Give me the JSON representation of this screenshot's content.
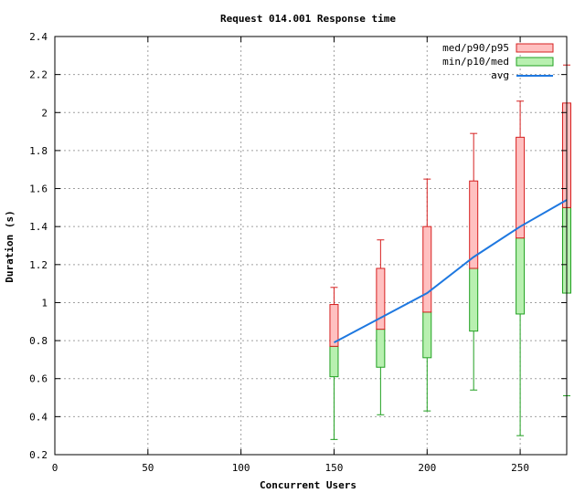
{
  "chart_data": {
    "type": "boxplot",
    "title": "Request 014.001 Response time",
    "xlabel": "Concurrent Users",
    "ylabel": "Duration (s)",
    "xlim": [
      0,
      275
    ],
    "ylim": [
      0.2,
      2.4
    ],
    "xticks": [
      0,
      50,
      100,
      150,
      200,
      250
    ],
    "xtick_labels": [
      "0",
      "50",
      "100",
      "150",
      "200",
      "250"
    ],
    "yticks": [
      0.2,
      0.4,
      0.6,
      0.8,
      1,
      1.2,
      1.4,
      1.6,
      1.8,
      2,
      2.2,
      2.4
    ],
    "ytick_labels": [
      "0.2",
      "0.4",
      "0.6",
      "0.8",
      "1",
      "1.2",
      "1.4",
      "1.6",
      "1.8",
      "2",
      "2.2",
      "2.4"
    ],
    "grid": true,
    "legend_position": "top-right",
    "legend": [
      {
        "name": "med/p90/p95",
        "kind": "box",
        "fill": "#ffc0c0",
        "stroke": "#d62020"
      },
      {
        "name": "min/p10/med",
        "kind": "box",
        "fill": "#b8f0b0",
        "stroke": "#20a020"
      },
      {
        "name": "avg",
        "kind": "line",
        "stroke": "#1e78e0"
      }
    ],
    "boxes": [
      {
        "x": 150,
        "min": 0.28,
        "p10": 0.61,
        "med": 0.77,
        "p90": 0.99,
        "p95": 1.08
      },
      {
        "x": 175,
        "min": 0.41,
        "p10": 0.66,
        "med": 0.86,
        "p90": 1.18,
        "p95": 1.33
      },
      {
        "x": 200,
        "min": 0.43,
        "p10": 0.71,
        "med": 0.95,
        "p90": 1.4,
        "p95": 1.65
      },
      {
        "x": 225,
        "min": 0.54,
        "p10": 0.85,
        "med": 1.18,
        "p90": 1.64,
        "p95": 1.89
      },
      {
        "x": 250,
        "min": 0.3,
        "p10": 0.94,
        "med": 1.34,
        "p90": 1.87,
        "p95": 2.06
      },
      {
        "x": 275,
        "min": 0.51,
        "p10": 1.05,
        "med": 1.5,
        "p90": 2.05,
        "p95": 2.25
      }
    ],
    "avg": {
      "name": "avg",
      "x": [
        150,
        175,
        200,
        225,
        250,
        275
      ],
      "values": [
        0.79,
        0.92,
        1.05,
        1.24,
        1.4,
        1.54
      ]
    },
    "colors": {
      "upper_fill": "#ffc0c0",
      "upper_stroke": "#d62020",
      "lower_fill": "#b8f0b0",
      "lower_stroke": "#20a020",
      "avg_line": "#1e78e0",
      "grid": "#a0a0a0",
      "axis": "#000000"
    }
  }
}
